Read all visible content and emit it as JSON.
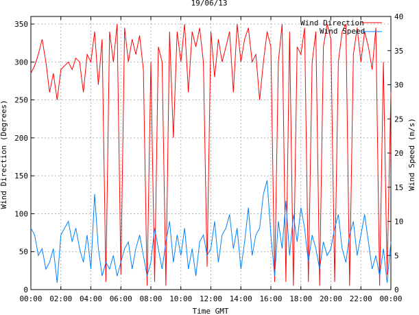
{
  "chart_data": {
    "type": "line",
    "title": "19/06/13",
    "xlabel": "Time GMT",
    "ylabel_left": "Wind Direction (Degrees)",
    "ylabel_right": "Wind Speed (m/s)",
    "x_ticks": [
      "00:00",
      "02:00",
      "04:00",
      "06:00",
      "08:00",
      "10:00",
      "12:00",
      "14:00",
      "16:00",
      "18:00",
      "20:00",
      "22:00",
      "00:00"
    ],
    "x_range_hours": [
      0,
      24
    ],
    "y_left_ticks": [
      0,
      50,
      100,
      150,
      200,
      250,
      300,
      350
    ],
    "y_left_range": [
      0,
      360
    ],
    "y_right_ticks": [
      0,
      5,
      10,
      15,
      20,
      25,
      30,
      35,
      40
    ],
    "y_right_range": [
      0,
      40
    ],
    "grid": true,
    "legend_position": "top-right",
    "series": [
      {
        "name": "Wind Direction",
        "axis": "left",
        "color": "#ff0000",
        "x_hours": [
          0.0,
          0.25,
          0.5,
          0.75,
          1.0,
          1.25,
          1.5,
          1.75,
          2.0,
          2.25,
          2.5,
          2.75,
          3.0,
          3.25,
          3.5,
          3.75,
          4.0,
          4.25,
          4.5,
          4.75,
          5.0,
          5.25,
          5.5,
          5.75,
          6.0,
          6.25,
          6.5,
          6.75,
          7.0,
          7.25,
          7.5,
          7.75,
          8.0,
          8.25,
          8.5,
          8.75,
          9.0,
          9.25,
          9.5,
          9.75,
          10.0,
          10.25,
          10.5,
          10.75,
          11.0,
          11.25,
          11.5,
          11.75,
          12.0,
          12.25,
          12.5,
          12.75,
          13.0,
          13.25,
          13.5,
          13.75,
          14.0,
          14.25,
          14.5,
          14.75,
          15.0,
          15.25,
          15.5,
          15.75,
          16.0,
          16.25,
          16.5,
          16.75,
          17.0,
          17.25,
          17.5,
          17.75,
          18.0,
          18.25,
          18.5,
          18.75,
          19.0,
          19.25,
          19.5,
          19.75,
          20.0,
          20.25,
          20.5,
          20.75,
          21.0,
          21.25,
          21.5,
          21.75,
          22.0,
          22.25,
          22.5,
          22.75,
          23.0,
          23.25,
          23.5,
          23.75,
          24.0
        ],
        "values": [
          285,
          295,
          310,
          330,
          300,
          260,
          285,
          250,
          290,
          295,
          300,
          290,
          305,
          300,
          260,
          310,
          300,
          340,
          270,
          330,
          10,
          340,
          300,
          350,
          20,
          345,
          300,
          330,
          310,
          335,
          290,
          5,
          300,
          10,
          320,
          300,
          5,
          340,
          200,
          340,
          300,
          350,
          260,
          340,
          320,
          345,
          300,
          30,
          340,
          280,
          330,
          300,
          320,
          340,
          260,
          350,
          300,
          330,
          345,
          300,
          310,
          250,
          300,
          340,
          320,
          10,
          300,
          350,
          10,
          340,
          5,
          320,
          310,
          345,
          10,
          300,
          340,
          5,
          320,
          350,
          330,
          10,
          300,
          340,
          350,
          5,
          310,
          345,
          300,
          340,
          320,
          290,
          345,
          5,
          300,
          20,
          260
        ]
      },
      {
        "name": "Wind Speed",
        "axis": "right",
        "color": "#0080ff",
        "x_hours": [
          0.0,
          0.25,
          0.5,
          0.75,
          1.0,
          1.25,
          1.5,
          1.75,
          2.0,
          2.25,
          2.5,
          2.75,
          3.0,
          3.25,
          3.5,
          3.75,
          4.0,
          4.25,
          4.5,
          4.75,
          5.0,
          5.25,
          5.5,
          5.75,
          6.0,
          6.25,
          6.5,
          6.75,
          7.0,
          7.25,
          7.5,
          7.75,
          8.0,
          8.25,
          8.5,
          8.75,
          9.0,
          9.25,
          9.5,
          9.75,
          10.0,
          10.25,
          10.5,
          10.75,
          11.0,
          11.25,
          11.5,
          11.75,
          12.0,
          12.25,
          12.5,
          12.75,
          13.0,
          13.25,
          13.5,
          13.75,
          14.0,
          14.25,
          14.5,
          14.75,
          15.0,
          15.25,
          15.5,
          15.75,
          16.0,
          16.25,
          16.5,
          16.75,
          17.0,
          17.25,
          17.5,
          17.75,
          18.0,
          18.25,
          18.5,
          18.75,
          19.0,
          19.25,
          19.5,
          19.75,
          20.0,
          20.25,
          20.5,
          20.75,
          21.0,
          21.25,
          21.5,
          21.75,
          22.0,
          22.25,
          22.5,
          22.75,
          23.0,
          23.25,
          23.5,
          23.75,
          24.0
        ],
        "values": [
          9,
          8,
          5,
          6,
          3,
          4,
          6,
          1,
          8,
          9,
          10,
          7,
          9,
          6,
          4,
          8,
          3,
          14,
          6,
          2,
          4,
          3,
          5,
          2,
          4,
          6,
          7,
          3,
          6,
          8,
          5,
          2,
          4,
          9,
          6,
          3,
          7,
          10,
          4,
          8,
          5,
          9,
          3,
          6,
          2,
          7,
          8,
          5,
          6,
          10,
          4,
          8,
          9,
          11,
          6,
          9,
          3,
          7,
          12,
          5,
          8,
          9,
          14,
          16,
          8,
          2,
          10,
          6,
          13,
          5,
          11,
          7,
          12,
          9,
          4,
          8,
          6,
          3,
          7,
          5,
          6,
          9,
          11,
          6,
          4,
          8,
          10,
          5,
          8,
          11,
          7,
          3,
          5,
          2,
          6,
          1,
          7
        ]
      }
    ]
  }
}
